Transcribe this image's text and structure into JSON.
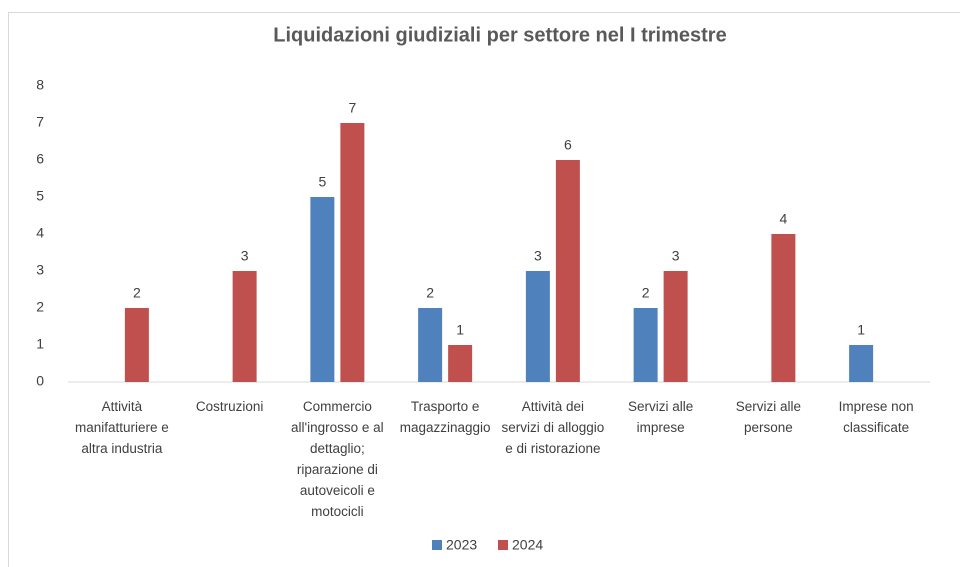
{
  "chart_data": {
    "type": "bar",
    "title": "Liquidazioni giudiziali per settore nel I trimestre",
    "categories": [
      "Attività manifatturiere e altra industria",
      "Costruzioni",
      "Commercio all'ingrosso e al dettaglio; riparazione di autoveicoli e motocicli",
      "Trasporto e magazzinaggio",
      "Attività dei servizi di alloggio e di ristorazione",
      "Servizi alle imprese",
      "Servizi alle persone",
      "Imprese non classificate"
    ],
    "series": [
      {
        "name": "2023",
        "color": "#4f81bd",
        "values": [
          null,
          null,
          5,
          2,
          3,
          2,
          null,
          1
        ]
      },
      {
        "name": "2024",
        "color": "#c0504d",
        "values": [
          2,
          3,
          7,
          1,
          6,
          3,
          4,
          null
        ]
      }
    ],
    "ylim": [
      0,
      8
    ],
    "yticks": [
      0,
      1,
      2,
      3,
      4,
      5,
      6,
      7,
      8
    ],
    "grid": false,
    "legend": "bottom"
  }
}
